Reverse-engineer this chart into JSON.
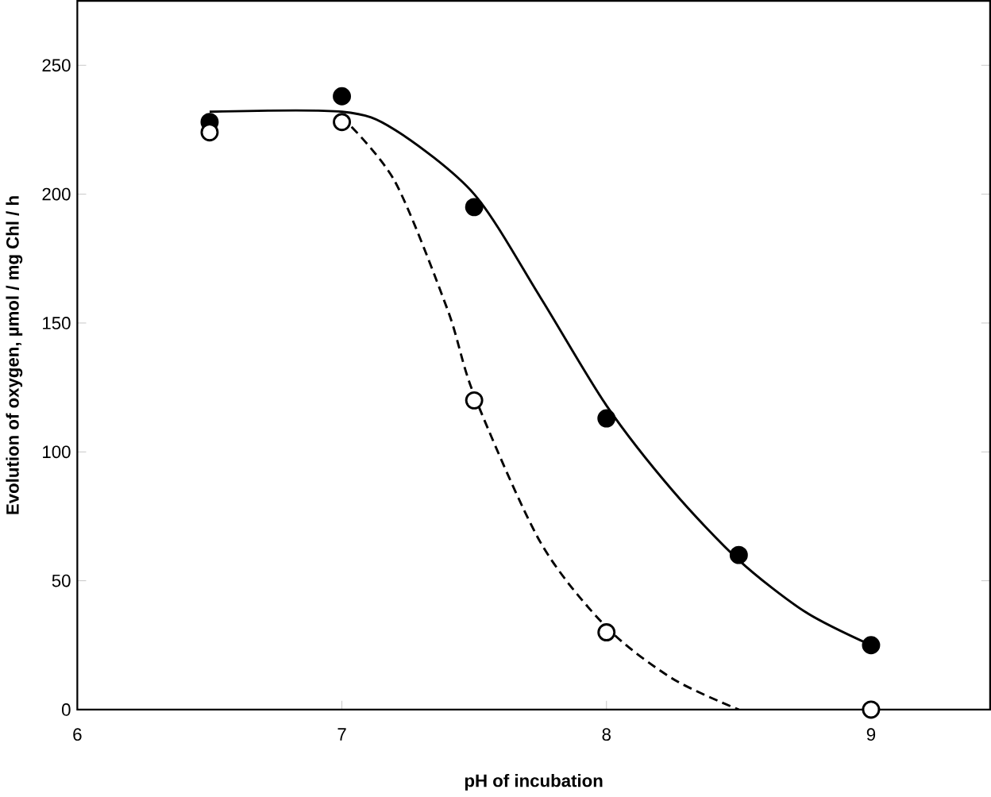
{
  "chart_data": {
    "type": "scatter",
    "xlabel": "pH of incubation",
    "ylabel": "Evolution of oxygen, µmol / mg Chl / h",
    "xlim": [
      6,
      9.45
    ],
    "ylim": [
      0,
      275
    ],
    "xticks": [
      6,
      7,
      8,
      9
    ],
    "yticks": [
      0,
      50,
      100,
      150,
      200,
      250
    ],
    "grid": false,
    "series": [
      {
        "color": "#000000",
        "marker": "circle",
        "x": [
          6.5,
          7,
          7.5,
          8,
          8.5,
          9
        ],
        "values": [
          228,
          238,
          195,
          113,
          60,
          25
        ]
      },
      {
        "color": "#ffffff",
        "marker": "circle",
        "x": [
          6.5,
          7,
          7.5,
          8,
          9
        ],
        "values": [
          224,
          228,
          120,
          30,
          0
        ]
      },
      {
        "type": "line",
        "color": "#000000",
        "marker": "none",
        "line_style": "solid",
        "x": [
          6.5,
          7,
          7.2,
          7.5,
          7.75,
          8,
          8.25,
          8.5,
          8.75,
          9
        ],
        "values": [
          232,
          232,
          225,
          200,
          160,
          118,
          85,
          58,
          38,
          25
        ]
      },
      {
        "type": "line",
        "color": "#000000",
        "marker": "none",
        "line_style": "dashed",
        "x": [
          7,
          7.2,
          7.4,
          7.5,
          7.75,
          8,
          8.25,
          8.5
        ],
        "values": [
          230,
          205,
          155,
          122,
          65,
          32,
          12,
          0
        ]
      }
    ]
  }
}
